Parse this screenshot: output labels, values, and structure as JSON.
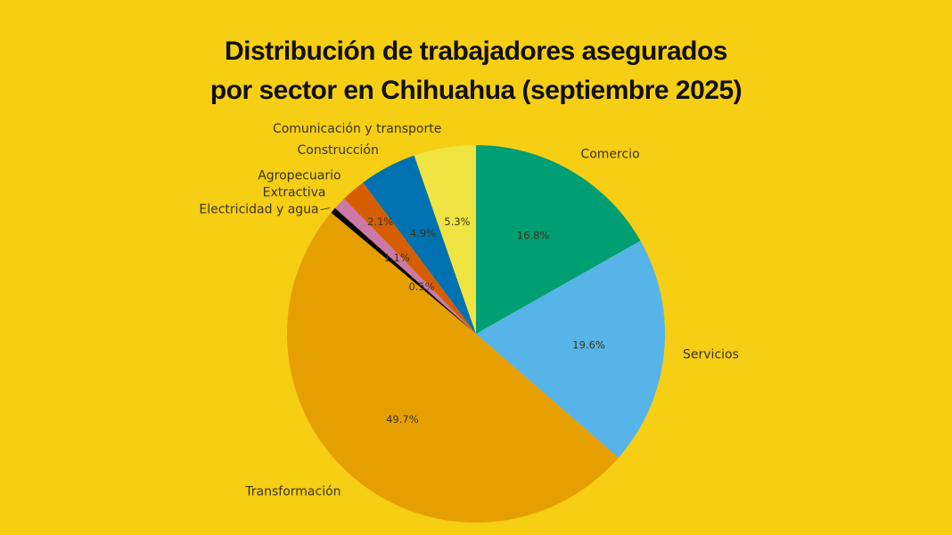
{
  "chart_data": {
    "type": "pie",
    "title_line1": "Distribución de trabajadores asegurados",
    "title_line2": "por sector en Chihuahua (septiembre 2025)",
    "start": "top",
    "direction": "clockwise",
    "slices": [
      {
        "label": "Comercio",
        "value": 16.8,
        "pct_label": "16.8%",
        "color": "#009E73"
      },
      {
        "label": "Servicios",
        "value": 19.6,
        "pct_label": "19.6%",
        "color": "#56B4E9"
      },
      {
        "label": "Transformación",
        "value": 49.7,
        "pct_label": "49.7%",
        "color": "#E69F00"
      },
      {
        "label": "Electricidad y agua",
        "value": 0.5,
        "pct_label": "0.5%",
        "color": "#000000"
      },
      {
        "label": "Extractiva",
        "value": 1.1,
        "pct_label": "1.1%",
        "color": "#CC79A7"
      },
      {
        "label": "Agropecuario",
        "value": 2.1,
        "pct_label": "2.1%",
        "color": "#D55E00"
      },
      {
        "label": "Construcción",
        "value": 4.9,
        "pct_label": "4.9%",
        "color": "#0072B2"
      },
      {
        "label": "Comunicación y transporte",
        "value": 5.3,
        "pct_label": "5.3%",
        "color": "#F0E442"
      }
    ]
  }
}
